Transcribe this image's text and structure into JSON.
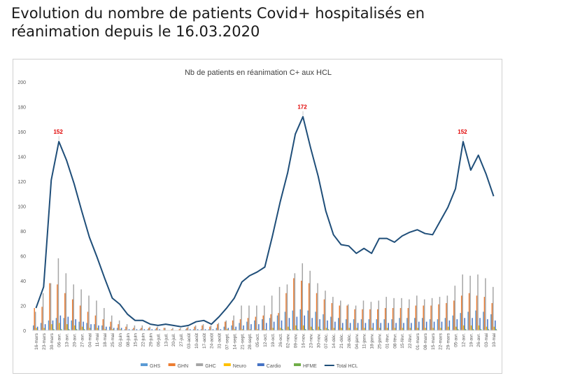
{
  "page_title": "Evolution du nombre de patients Covid+ hospitalisés en réanimation depuis le 16.03.2020",
  "chart_data": {
    "type": "line",
    "title": "Nb de patients en réanimation C+ aux HCL",
    "xlabel": "",
    "ylabel": "",
    "ylim": [
      0,
      200
    ],
    "yticks": [
      0,
      20,
      40,
      60,
      80,
      100,
      120,
      140,
      160,
      180,
      200
    ],
    "grid": false,
    "legend_position": "bottom",
    "categories": [
      "16-mars",
      "23-mars",
      "30-mars",
      "06-avr.",
      "13-avr.",
      "20-avr.",
      "27-avr.",
      "04-mai",
      "11-mai",
      "18-mai",
      "25-mai",
      "01-juin",
      "08-juin",
      "15-juin",
      "22-juin",
      "29-juin",
      "06-juil.",
      "13-juil.",
      "20-juil.",
      "27-juil.",
      "03-août",
      "10-août",
      "17-août",
      "24-août",
      "31-août",
      "07-sept.",
      "14-sept.",
      "21-sept.",
      "28-sept.",
      "05-oct.",
      "12-oct.",
      "19-oct.",
      "26-oct.",
      "02-nov.",
      "09-nov.",
      "16-nov.",
      "23-nov.",
      "30-nov.",
      "07-déc.",
      "14-déc.",
      "21-déc.",
      "28-déc.",
      "04-janv.",
      "11-janv.",
      "18-janv.",
      "25-janv.",
      "01-févr.",
      "08-févr.",
      "15-févr.",
      "22-févr.",
      "01-mars",
      "08-mars",
      "15-mars",
      "22-mars",
      "29-mars",
      "05-avr.",
      "12-avr.",
      "19-avr.",
      "26-avr.",
      "03-mai",
      "10-mai"
    ],
    "series": [
      {
        "name": "GHS",
        "type": "bar",
        "color": "#5b9bd5",
        "values": [
          4,
          6,
          8,
          10,
          10,
          8,
          7,
          6,
          5,
          4,
          3,
          2,
          1,
          1,
          1,
          1,
          1,
          0,
          0,
          0,
          1,
          1,
          1,
          1,
          2,
          3,
          4,
          6,
          7,
          8,
          9,
          10,
          12,
          15,
          16,
          17,
          16,
          15,
          13,
          11,
          10,
          9,
          9,
          9,
          9,
          9,
          9,
          9,
          10,
          10,
          10,
          10,
          9,
          9,
          10,
          12,
          14,
          15,
          16,
          15,
          13
        ]
      },
      {
        "name": "GHN",
        "type": "bar",
        "color": "#ed7d31",
        "values": [
          18,
          19,
          38,
          37,
          30,
          25,
          20,
          15,
          12,
          9,
          7,
          5,
          3,
          2,
          2,
          2,
          2,
          2,
          1,
          1,
          2,
          3,
          4,
          3,
          5,
          7,
          8,
          9,
          10,
          11,
          12,
          13,
          14,
          30,
          42,
          40,
          38,
          30,
          25,
          22,
          20,
          20,
          17,
          17,
          17,
          17,
          18,
          18,
          18,
          18,
          20,
          20,
          20,
          21,
          22,
          24,
          28,
          30,
          28,
          27,
          22
        ]
      },
      {
        "name": "GHC",
        "type": "bar",
        "color": "#a5a5a5",
        "values": [
          15,
          30,
          38,
          58,
          46,
          37,
          33,
          28,
          24,
          18,
          12,
          8,
          5,
          4,
          4,
          3,
          3,
          2,
          2,
          2,
          3,
          4,
          5,
          4,
          6,
          8,
          12,
          20,
          20,
          20,
          20,
          28,
          35,
          37,
          46,
          54,
          48,
          38,
          32,
          27,
          24,
          21,
          20,
          24,
          23,
          24,
          27,
          26,
          26,
          25,
          28,
          25,
          26,
          27,
          28,
          36,
          45,
          44,
          45,
          42,
          35
        ]
      },
      {
        "name": "Neuro",
        "type": "bar",
        "color": "#ffc000",
        "values": [
          2,
          2,
          5,
          6,
          5,
          4,
          3,
          2,
          2,
          1,
          1,
          1,
          0,
          0,
          0,
          0,
          0,
          0,
          0,
          0,
          0,
          0,
          0,
          0,
          0,
          1,
          1,
          1,
          1,
          1,
          1,
          2,
          2,
          3,
          4,
          4,
          3,
          3,
          2,
          2,
          2,
          2,
          2,
          2,
          2,
          2,
          2,
          2,
          2,
          2,
          2,
          2,
          2,
          2,
          3,
          3,
          4,
          4,
          4,
          3,
          3
        ]
      },
      {
        "name": "Cardio",
        "type": "bar",
        "color": "#4472c4",
        "values": [
          3,
          5,
          8,
          12,
          11,
          9,
          7,
          5,
          4,
          3,
          2,
          2,
          1,
          1,
          1,
          1,
          1,
          0,
          0,
          0,
          1,
          1,
          1,
          1,
          1,
          2,
          3,
          4,
          5,
          5,
          6,
          7,
          8,
          10,
          11,
          12,
          10,
          9,
          8,
          7,
          6,
          6,
          6,
          6,
          6,
          6,
          6,
          6,
          6,
          6,
          7,
          7,
          7,
          7,
          8,
          9,
          10,
          10,
          10,
          9,
          8
        ]
      },
      {
        "name": "HFME",
        "type": "bar",
        "color": "#70ad47",
        "values": [
          0,
          0,
          1,
          1,
          1,
          1,
          1,
          0,
          0,
          0,
          0,
          0,
          0,
          0,
          0,
          0,
          0,
          0,
          0,
          0,
          0,
          0,
          0,
          0,
          0,
          0,
          0,
          0,
          0,
          0,
          0,
          0,
          1,
          1,
          1,
          1,
          1,
          1,
          1,
          0,
          0,
          0,
          0,
          0,
          0,
          0,
          0,
          0,
          0,
          0,
          0,
          0,
          0,
          0,
          0,
          1,
          1,
          1,
          1,
          1,
          1
        ]
      },
      {
        "name": "Total HCL",
        "type": "line",
        "color": "#1f4e79",
        "values": [
          18,
          35,
          121,
          152,
          137,
          118,
          96,
          75,
          59,
          42,
          26,
          21,
          13,
          8,
          8,
          5,
          4,
          5,
          4,
          3,
          4,
          7,
          8,
          5,
          11,
          18,
          26,
          39,
          44,
          47,
          51,
          76,
          103,
          127,
          158,
          172,
          147,
          124,
          96,
          77,
          69,
          68,
          62,
          66,
          62,
          74,
          74,
          71,
          76,
          79,
          81,
          78,
          77,
          88,
          99,
          114,
          152,
          129,
          141,
          126,
          108
        ]
      }
    ],
    "annotations": [
      {
        "category": "06-avr.",
        "value": 152,
        "text": "152",
        "color": "#e00000"
      },
      {
        "category": "16-nov.",
        "value": 172,
        "text": "172",
        "color": "#e00000"
      },
      {
        "category": "12-avr.",
        "value": 152,
        "text": "152",
        "color": "#e00000"
      }
    ]
  }
}
